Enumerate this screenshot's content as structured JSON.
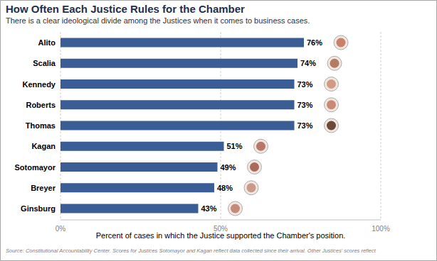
{
  "chart_data": {
    "type": "bar",
    "orientation": "horizontal",
    "title": "How Often Each Justice Rules for the Chamber",
    "subtitle": "There is a clear ideological divide among the Justices when it comes to business cases.",
    "categories": [
      "Alito",
      "Scalia",
      "Kennedy",
      "Roberts",
      "Thomas",
      "Kagan",
      "Sotomayor",
      "Breyer",
      "Ginsburg"
    ],
    "values": [
      76,
      74,
      73,
      73,
      73,
      51,
      49,
      48,
      43
    ],
    "value_labels": [
      "76%",
      "74%",
      "73%",
      "73%",
      "73%",
      "51%",
      "49%",
      "48%",
      "43%"
    ],
    "color": "#3a5d96",
    "xlim": [
      0,
      100
    ],
    "xticks": [
      {
        "value": 0,
        "label": "0%"
      },
      {
        "value": 50,
        "label": "50%"
      },
      {
        "value": 100,
        "label": "100%"
      }
    ],
    "x_label": "Percent of cases in which the Justice supported the Chamber's position.",
    "source": "Source: Constitutional Accountability Center. Scores for Justices Sotomayor and Kagan reflect data collected since their arrival. Other Justices' scores reflect",
    "data_labels": true,
    "grid": true
  }
}
